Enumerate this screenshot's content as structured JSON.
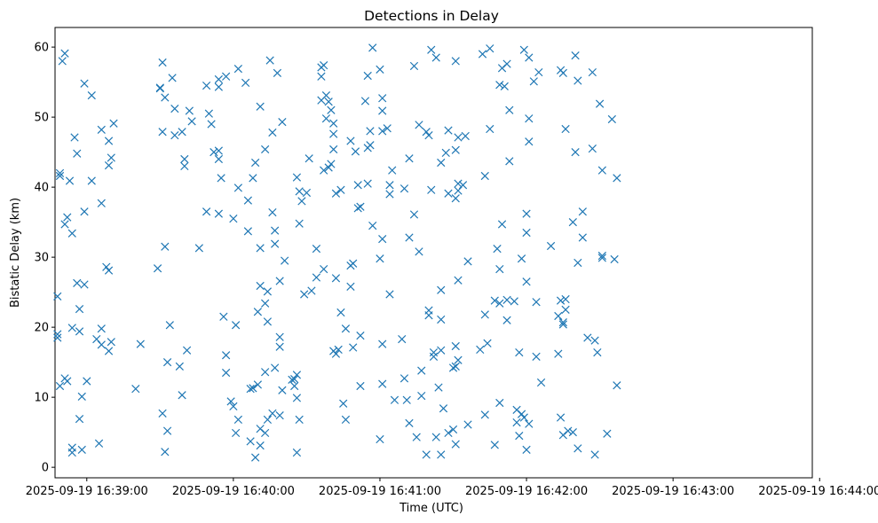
{
  "chart_data": {
    "type": "scatter",
    "title": "Detections in Delay",
    "xlabel": "Time (UTC)",
    "ylabel": "Bistatic Delay (km)",
    "marker": "x",
    "color": "#1f77b4",
    "grid": false,
    "legend": "none",
    "xlim": [
      "2025-09-19 16:38:47",
      "2025-09-19 16:43:57"
    ],
    "ylim": [
      -1.5,
      62.8
    ],
    "x_ticks": [
      "2025-09-19 16:39:00",
      "2025-09-19 16:40:00",
      "2025-09-19 16:41:00",
      "2025-09-19 16:42:00",
      "2025-09-19 16:43:00",
      "2025-09-19 16:44:00"
    ],
    "y_ticks": [
      0,
      10,
      20,
      30,
      40,
      50,
      60
    ],
    "points": [
      [
        "16:38:48",
        24.4
      ],
      [
        "16:38:48",
        19.0
      ],
      [
        "16:38:48",
        18.5
      ],
      [
        "16:38:49",
        42.0
      ],
      [
        "16:38:49",
        41.6
      ],
      [
        "16:38:49",
        11.6
      ],
      [
        "16:38:50",
        58.0
      ],
      [
        "16:38:51",
        59.1
      ],
      [
        "16:38:51",
        34.7
      ],
      [
        "16:38:52",
        35.7
      ],
      [
        "16:38:51",
        12.7
      ],
      [
        "16:38:52",
        12.3
      ],
      [
        "16:38:53",
        40.9
      ],
      [
        "16:38:54",
        33.4
      ],
      [
        "16:38:54",
        2.8
      ],
      [
        "16:38:54",
        2.1
      ],
      [
        "16:38:54",
        19.9
      ],
      [
        "16:38:55",
        47.1
      ],
      [
        "16:38:56",
        44.8
      ],
      [
        "16:38:56",
        26.3
      ],
      [
        "16:38:57",
        22.6
      ],
      [
        "16:38:57",
        19.4
      ],
      [
        "16:38:57",
        6.9
      ],
      [
        "16:38:58",
        10.1
      ],
      [
        "16:38:58",
        2.5
      ],
      [
        "16:38:59",
        54.8
      ],
      [
        "16:38:59",
        36.5
      ],
      [
        "16:38:59",
        26.1
      ],
      [
        "16:39:00",
        12.3
      ],
      [
        "16:39:02",
        53.1
      ],
      [
        "16:39:02",
        40.9
      ],
      [
        "16:39:04",
        18.3
      ],
      [
        "16:39:05",
        3.4
      ],
      [
        "16:39:06",
        48.2
      ],
      [
        "16:39:06",
        37.7
      ],
      [
        "16:39:06",
        19.8
      ],
      [
        "16:39:06",
        17.5
      ],
      [
        "16:39:08",
        28.6
      ],
      [
        "16:39:09",
        46.6
      ],
      [
        "16:39:09",
        43.1
      ],
      [
        "16:39:09",
        28.1
      ],
      [
        "16:39:09",
        16.6
      ],
      [
        "16:39:10",
        44.2
      ],
      [
        "16:39:10",
        17.9
      ],
      [
        "16:39:11",
        49.1
      ],
      [
        "16:39:20",
        11.2
      ],
      [
        "16:39:22",
        17.6
      ],
      [
        "16:39:29",
        28.4
      ],
      [
        "16:39:30",
        54.2
      ],
      [
        "16:39:30",
        54.1
      ],
      [
        "16:39:31",
        57.8
      ],
      [
        "16:39:31",
        47.9
      ],
      [
        "16:39:31",
        7.7
      ],
      [
        "16:39:32",
        52.8
      ],
      [
        "16:39:32",
        31.5
      ],
      [
        "16:39:32",
        2.2
      ],
      [
        "16:39:33",
        15.0
      ],
      [
        "16:39:33",
        5.2
      ],
      [
        "16:39:34",
        20.3
      ],
      [
        "16:39:35",
        55.6
      ],
      [
        "16:39:36",
        51.2
      ],
      [
        "16:39:36",
        47.4
      ],
      [
        "16:39:38",
        14.4
      ],
      [
        "16:39:39",
        10.3
      ],
      [
        "16:39:39",
        47.9
      ],
      [
        "16:39:40",
        44.0
      ],
      [
        "16:39:40",
        43.0
      ],
      [
        "16:39:41",
        16.7
      ],
      [
        "16:39:42",
        50.9
      ],
      [
        "16:39:43",
        49.4
      ],
      [
        "16:39:46",
        31.3
      ],
      [
        "16:39:49",
        54.5
      ],
      [
        "16:39:49",
        36.5
      ],
      [
        "16:39:50",
        50.5
      ],
      [
        "16:39:51",
        49.0
      ],
      [
        "16:39:52",
        45.0
      ],
      [
        "16:39:54",
        54.3
      ],
      [
        "16:39:54",
        55.4
      ],
      [
        "16:39:54",
        36.2
      ],
      [
        "16:39:54",
        45.2
      ],
      [
        "16:39:54",
        44.0
      ],
      [
        "16:39:55",
        41.3
      ],
      [
        "16:39:56",
        21.5
      ],
      [
        "16:39:57",
        55.8
      ],
      [
        "16:39:57",
        16.0
      ],
      [
        "16:39:57",
        13.5
      ],
      [
        "16:39:59",
        9.4
      ],
      [
        "16:40:00",
        8.7
      ],
      [
        "16:40:00",
        35.5
      ],
      [
        "16:40:01",
        20.3
      ],
      [
        "16:40:01",
        4.9
      ],
      [
        "16:40:02",
        39.9
      ],
      [
        "16:40:02",
        6.8
      ],
      [
        "16:40:02",
        56.9
      ],
      [
        "16:40:05",
        54.9
      ],
      [
        "16:40:06",
        38.1
      ],
      [
        "16:40:06",
        33.7
      ],
      [
        "16:40:07",
        3.7
      ],
      [
        "16:40:07",
        11.2
      ],
      [
        "16:40:08",
        41.3
      ],
      [
        "16:40:08",
        11.3
      ],
      [
        "16:40:09",
        43.5
      ],
      [
        "16:40:09",
        1.4
      ],
      [
        "16:40:10",
        22.2
      ],
      [
        "16:40:10",
        11.8
      ],
      [
        "16:40:11",
        51.5
      ],
      [
        "16:40:11",
        31.3
      ],
      [
        "16:40:11",
        25.9
      ],
      [
        "16:40:11",
        5.5
      ],
      [
        "16:40:11",
        3.1
      ],
      [
        "16:40:13",
        45.4
      ],
      [
        "16:40:13",
        23.4
      ],
      [
        "16:40:13",
        13.6
      ],
      [
        "16:40:13",
        4.9
      ],
      [
        "16:40:14",
        25.1
      ],
      [
        "16:40:14",
        20.8
      ],
      [
        "16:40:14",
        6.8
      ],
      [
        "16:40:15",
        58.1
      ],
      [
        "16:40:16",
        47.8
      ],
      [
        "16:40:16",
        36.4
      ],
      [
        "16:40:16",
        7.7
      ],
      [
        "16:40:17",
        33.8
      ],
      [
        "16:40:17",
        31.9
      ],
      [
        "16:40:17",
        14.2
      ],
      [
        "16:40:18",
        56.3
      ],
      [
        "16:40:19",
        26.6
      ],
      [
        "16:40:19",
        18.6
      ],
      [
        "16:40:19",
        17.2
      ],
      [
        "16:40:19",
        7.4
      ],
      [
        "16:40:20",
        49.3
      ],
      [
        "16:40:20",
        11.0
      ],
      [
        "16:40:21",
        29.5
      ],
      [
        "16:40:24",
        12.5
      ],
      [
        "16:40:25",
        12.6
      ],
      [
        "16:40:25",
        11.6
      ],
      [
        "16:40:26",
        13.2
      ],
      [
        "16:40:26",
        9.9
      ],
      [
        "16:40:26",
        41.4
      ],
      [
        "16:40:26",
        2.1
      ],
      [
        "16:40:27",
        39.4
      ],
      [
        "16:40:27",
        34.8
      ],
      [
        "16:40:27",
        6.8
      ],
      [
        "16:40:28",
        38.0
      ],
      [
        "16:40:29",
        24.7
      ],
      [
        "16:40:30",
        39.2
      ],
      [
        "16:40:31",
        44.1
      ],
      [
        "16:40:32",
        25.2
      ],
      [
        "16:40:34",
        31.2
      ],
      [
        "16:40:34",
        27.1
      ],
      [
        "16:40:36",
        55.8
      ],
      [
        "16:40:36",
        57.1
      ],
      [
        "16:40:36",
        52.4
      ],
      [
        "16:40:37",
        42.4
      ],
      [
        "16:40:37",
        28.3
      ],
      [
        "16:40:37",
        57.4
      ],
      [
        "16:40:38",
        53.1
      ],
      [
        "16:40:38",
        49.8
      ],
      [
        "16:40:39",
        52.2
      ],
      [
        "16:40:39",
        42.8
      ],
      [
        "16:40:40",
        43.3
      ],
      [
        "16:40:40",
        51.0
      ],
      [
        "16:40:41",
        49.1
      ],
      [
        "16:40:41",
        47.6
      ],
      [
        "16:40:41",
        45.4
      ],
      [
        "16:40:41",
        16.6
      ],
      [
        "16:40:42",
        16.2
      ],
      [
        "16:40:42",
        27.0
      ],
      [
        "16:40:42",
        39.1
      ],
      [
        "16:40:43",
        16.8
      ],
      [
        "16:40:44",
        39.6
      ],
      [
        "16:40:44",
        22.1
      ],
      [
        "16:40:45",
        9.1
      ],
      [
        "16:40:46",
        19.8
      ],
      [
        "16:40:46",
        6.8
      ],
      [
        "16:40:48",
        46.6
      ],
      [
        "16:40:48",
        28.8
      ],
      [
        "16:40:48",
        25.8
      ],
      [
        "16:40:49",
        29.1
      ],
      [
        "16:40:49",
        17.1
      ],
      [
        "16:40:50",
        45.1
      ],
      [
        "16:40:51",
        40.3
      ],
      [
        "16:40:51",
        37.0
      ],
      [
        "16:40:52",
        37.2
      ],
      [
        "16:40:52",
        18.8
      ],
      [
        "16:40:52",
        11.6
      ],
      [
        "16:40:54",
        52.3
      ],
      [
        "16:40:55",
        55.9
      ],
      [
        "16:40:55",
        45.6
      ],
      [
        "16:40:55",
        40.5
      ],
      [
        "16:40:56",
        48.0
      ],
      [
        "16:40:56",
        46.0
      ],
      [
        "16:40:57",
        59.9
      ],
      [
        "16:40:57",
        34.5
      ],
      [
        "16:41:00",
        56.8
      ],
      [
        "16:41:00",
        29.8
      ],
      [
        "16:41:00",
        4.0
      ],
      [
        "16:41:01",
        52.7
      ],
      [
        "16:41:01",
        50.9
      ],
      [
        "16:41:01",
        48.0
      ],
      [
        "16:41:01",
        32.6
      ],
      [
        "16:41:01",
        17.6
      ],
      [
        "16:41:01",
        11.9
      ],
      [
        "16:41:03",
        48.4
      ],
      [
        "16:41:04",
        40.3
      ],
      [
        "16:41:04",
        39.0
      ],
      [
        "16:41:04",
        24.7
      ],
      [
        "16:41:05",
        42.4
      ],
      [
        "16:41:06",
        9.6
      ],
      [
        "16:41:09",
        18.3
      ],
      [
        "16:41:10",
        39.8
      ],
      [
        "16:41:10",
        12.7
      ],
      [
        "16:41:11",
        9.6
      ],
      [
        "16:41:12",
        44.1
      ],
      [
        "16:41:12",
        32.8
      ],
      [
        "16:41:12",
        6.3
      ],
      [
        "16:41:14",
        57.3
      ],
      [
        "16:41:14",
        36.1
      ],
      [
        "16:41:15",
        4.3
      ],
      [
        "16:41:16",
        48.9
      ],
      [
        "16:41:16",
        30.8
      ],
      [
        "16:41:17",
        10.2
      ],
      [
        "16:41:17",
        13.8
      ],
      [
        "16:41:19",
        1.8
      ],
      [
        "16:41:19",
        47.9
      ],
      [
        "16:41:20",
        47.4
      ],
      [
        "16:41:20",
        22.4
      ],
      [
        "16:41:20",
        21.7
      ],
      [
        "16:41:21",
        59.6
      ],
      [
        "16:41:21",
        39.6
      ],
      [
        "16:41:22",
        15.8
      ],
      [
        "16:41:22",
        16.4
      ],
      [
        "16:41:23",
        58.5
      ],
      [
        "16:41:23",
        4.3
      ],
      [
        "16:41:24",
        11.4
      ],
      [
        "16:41:25",
        21.1
      ],
      [
        "16:41:25",
        1.8
      ],
      [
        "16:41:25",
        16.7
      ],
      [
        "16:41:25",
        25.3
      ],
      [
        "16:41:25",
        43.5
      ],
      [
        "16:41:26",
        8.4
      ],
      [
        "16:41:27",
        44.9
      ],
      [
        "16:41:28",
        48.1
      ],
      [
        "16:41:28",
        39.1
      ],
      [
        "16:41:28",
        4.9
      ],
      [
        "16:41:30",
        14.2
      ],
      [
        "16:41:30",
        5.4
      ],
      [
        "16:41:31",
        45.3
      ],
      [
        "16:41:31",
        58.0
      ],
      [
        "16:41:31",
        38.4
      ],
      [
        "16:41:31",
        17.3
      ],
      [
        "16:41:31",
        14.4
      ],
      [
        "16:41:31",
        3.3
      ],
      [
        "16:41:32",
        47.1
      ],
      [
        "16:41:32",
        40.5
      ],
      [
        "16:41:32",
        39.5
      ],
      [
        "16:41:32",
        26.7
      ],
      [
        "16:41:32",
        15.3
      ],
      [
        "16:41:34",
        40.3
      ],
      [
        "16:41:35",
        47.3
      ],
      [
        "16:41:36",
        29.4
      ],
      [
        "16:41:36",
        6.1
      ],
      [
        "16:41:41",
        16.8
      ],
      [
        "16:41:42",
        59.0
      ],
      [
        "16:41:43",
        41.6
      ],
      [
        "16:41:43",
        21.8
      ],
      [
        "16:41:43",
        7.5
      ],
      [
        "16:41:44",
        17.7
      ],
      [
        "16:41:45",
        59.8
      ],
      [
        "16:41:45",
        48.3
      ],
      [
        "16:41:47",
        23.8
      ],
      [
        "16:41:47",
        3.2
      ],
      [
        "16:41:48",
        31.2
      ],
      [
        "16:41:49",
        54.6
      ],
      [
        "16:41:49",
        28.3
      ],
      [
        "16:41:49",
        23.4
      ],
      [
        "16:41:49",
        9.2
      ],
      [
        "16:41:50",
        57.0
      ],
      [
        "16:41:50",
        34.7
      ],
      [
        "16:41:51",
        54.4
      ],
      [
        "16:41:52",
        57.6
      ],
      [
        "16:41:52",
        21.0
      ],
      [
        "16:41:52",
        23.9
      ],
      [
        "16:41:53",
        51.0
      ],
      [
        "16:41:53",
        43.7
      ],
      [
        "16:41:55",
        23.7
      ],
      [
        "16:41:56",
        6.4
      ],
      [
        "16:41:56",
        8.2
      ],
      [
        "16:41:57",
        16.4
      ],
      [
        "16:41:57",
        4.5
      ],
      [
        "16:41:58",
        29.8
      ],
      [
        "16:41:58",
        7.6
      ],
      [
        "16:41:59",
        59.6
      ],
      [
        "16:41:59",
        7.1
      ],
      [
        "16:42:00",
        26.5
      ],
      [
        "16:42:00",
        2.5
      ],
      [
        "16:42:00",
        36.2
      ],
      [
        "16:42:00",
        33.5
      ],
      [
        "16:42:01",
        6.2
      ],
      [
        "16:42:01",
        58.5
      ],
      [
        "16:42:01",
        46.5
      ],
      [
        "16:42:01",
        49.8
      ],
      [
        "16:42:03",
        55.1
      ],
      [
        "16:42:04",
        23.6
      ],
      [
        "16:42:04",
        15.8
      ],
      [
        "16:42:05",
        56.4
      ],
      [
        "16:42:06",
        12.1
      ],
      [
        "16:42:10",
        31.6
      ],
      [
        "16:42:13",
        21.6
      ],
      [
        "16:42:13",
        16.2
      ],
      [
        "16:42:14",
        23.8
      ],
      [
        "16:42:14",
        7.1
      ],
      [
        "16:42:14",
        56.7
      ],
      [
        "16:42:15",
        20.4
      ],
      [
        "16:42:15",
        4.6
      ],
      [
        "16:42:15",
        20.7
      ],
      [
        "16:42:15",
        56.3
      ],
      [
        "16:42:16",
        48.3
      ],
      [
        "16:42:16",
        22.5
      ],
      [
        "16:42:16",
        24.0
      ],
      [
        "16:42:17",
        5.2
      ],
      [
        "16:42:19",
        35.0
      ],
      [
        "16:42:19",
        5.0
      ],
      [
        "16:42:20",
        58.8
      ],
      [
        "16:42:20",
        45.0
      ],
      [
        "16:42:21",
        29.2
      ],
      [
        "16:42:21",
        2.7
      ],
      [
        "16:42:21",
        55.2
      ],
      [
        "16:42:23",
        36.5
      ],
      [
        "16:42:23",
        32.8
      ],
      [
        "16:42:25",
        18.5
      ],
      [
        "16:42:27",
        45.5
      ],
      [
        "16:42:27",
        56.4
      ],
      [
        "16:42:28",
        18.1
      ],
      [
        "16:42:28",
        1.8
      ],
      [
        "16:42:29",
        16.4
      ],
      [
        "16:42:30",
        51.9
      ],
      [
        "16:42:31",
        42.4
      ],
      [
        "16:42:31",
        30.2
      ],
      [
        "16:42:31",
        29.9
      ],
      [
        "16:42:33",
        4.8
      ],
      [
        "16:42:35",
        49.7
      ],
      [
        "16:42:36",
        29.7
      ],
      [
        "16:42:37",
        41.3
      ],
      [
        "16:42:37",
        11.7
      ]
    ]
  }
}
